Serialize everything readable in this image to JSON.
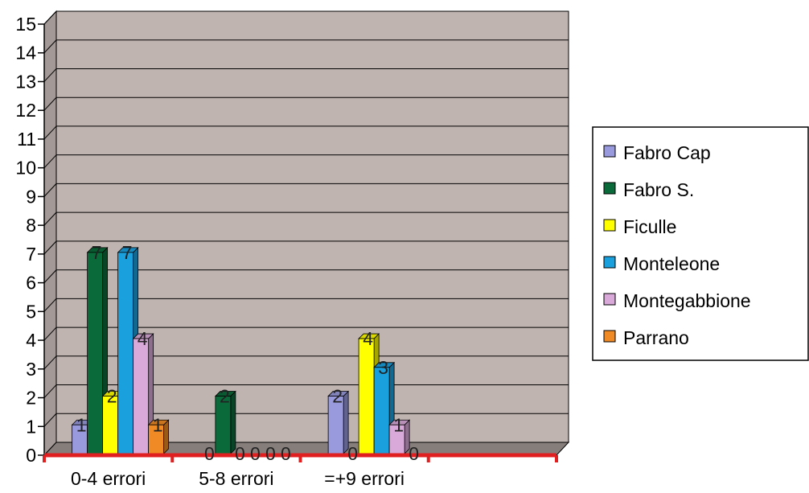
{
  "chart_data": {
    "type": "bar",
    "categories": [
      "0-4 errori",
      "5-8 errori",
      "=+9 errori",
      ""
    ],
    "series": [
      {
        "name": "Fabro Cap",
        "values": [
          1,
          0,
          2,
          null
        ],
        "color": "#9999dd"
      },
      {
        "name": "Fabro S.",
        "values": [
          7,
          2,
          0,
          null
        ],
        "color": "#0a6a3a"
      },
      {
        "name": "Ficulle",
        "values": [
          2,
          0,
          4,
          null
        ],
        "color": "#ffff00"
      },
      {
        "name": "Monteleone",
        "values": [
          7,
          0,
          3,
          null
        ],
        "color": "#1aa0dd"
      },
      {
        "name": "Montegabbione",
        "values": [
          4,
          0,
          1,
          null
        ],
        "color": "#d9a9d9"
      },
      {
        "name": "Parrano",
        "values": [
          1,
          0,
          0,
          null
        ],
        "color": "#f08a24"
      }
    ],
    "yticks": [
      "0",
      "1",
      "2",
      "3",
      "4",
      "5",
      "6",
      "7",
      "8",
      "9",
      "10",
      "11",
      "12",
      "13",
      "14",
      "15"
    ],
    "ylim": [
      0,
      15
    ],
    "grid": true,
    "legend": "right",
    "three_d": true,
    "plot_background": "#c0b4b0",
    "axis_accent_color": "#e02020"
  }
}
